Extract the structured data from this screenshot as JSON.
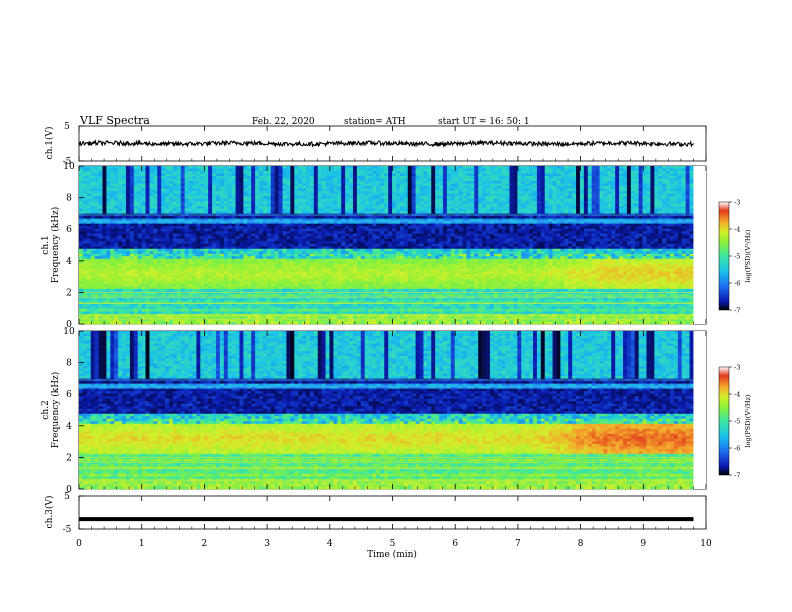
{
  "header": {
    "title": "VLF  Spectra",
    "date": "Feb. 22, 2020",
    "station": "station= ATH",
    "start": "start  UT  =    16: 50: 1"
  },
  "panels": {
    "ch1_wave": {
      "ylabel": "ch.1(V)"
    },
    "ch1_spec": {
      "ylabel_ch": "ch.1",
      "ylabel_freq": "Frequency  (kHz)"
    },
    "ch2_spec": {
      "ylabel_ch": "ch.2",
      "ylabel_freq": "Frequency  (kHz)"
    },
    "ch3_wave": {
      "ylabel": "ch.3(V)"
    }
  },
  "colorbar": {
    "label": "log(PSD)(V²/Hz)",
    "ticks": [
      "-3",
      "-4",
      "-5",
      "-6",
      "-7"
    ]
  },
  "colors": {
    "colormap": [
      "#000000",
      "#0a1bb0",
      "#1e6ef0",
      "#19c2e8",
      "#3ee6a0",
      "#86f03c",
      "#d2f02a",
      "#f3a62c",
      "#e23a1e",
      "#ffffff"
    ]
  },
  "chart_data": [
    {
      "type": "line",
      "name": "ch1-waveform",
      "xlabel": "Time  (min)",
      "xlim": [
        0,
        10
      ],
      "ylim": [
        -5,
        5
      ],
      "yticks": [
        "5",
        "-5"
      ],
      "baseline": 0,
      "note": "dense noisy trace near 0 V, amplitude about ±0.6 V, from 0 to 9.8 min"
    },
    {
      "type": "heatmap",
      "name": "ch1-spectrogram",
      "xlim": [
        0,
        9.8
      ],
      "ylim": [
        0,
        10
      ],
      "yticks": [
        "0",
        "2",
        "4",
        "6",
        "8",
        "10"
      ],
      "zlim": [
        -7,
        -3
      ],
      "bands": [
        {
          "f_range": [
            0,
            0.6
          ],
          "level": "green-yellow lines"
        },
        {
          "f_range": [
            0.6,
            2.2
          ],
          "level": "cyan-blue with horizontal lines"
        },
        {
          "f_range": [
            2.2,
            4.2
          ],
          "level": "green, yellow-orange after 7.5 min"
        },
        {
          "f_range": [
            4.2,
            7.0
          ],
          "level": "dark blue / black"
        },
        {
          "f_range": [
            7.0,
            10
          ],
          "level": "cyan with vertical black stripes (sferics)"
        }
      ]
    },
    {
      "type": "heatmap",
      "name": "ch2-spectrogram",
      "xlim": [
        0,
        9.8
      ],
      "ylim": [
        0,
        10
      ],
      "yticks": [
        "0",
        "2",
        "4",
        "6",
        "8",
        "10"
      ],
      "zlim": [
        -7,
        -3
      ],
      "bands": [
        {
          "f_range": [
            0,
            0.6
          ],
          "level": "green-yellow lines"
        },
        {
          "f_range": [
            0.6,
            2.3
          ],
          "level": "green-cyan with horizontal lines"
        },
        {
          "f_range": [
            2.3,
            4.3
          ],
          "level": "yellow-orange, red after 7.2 min"
        },
        {
          "f_range": [
            4.3,
            7.0
          ],
          "level": "dark blue / black"
        },
        {
          "f_range": [
            7.0,
            10
          ],
          "level": "cyan with vertical black stripes (sferics)"
        }
      ]
    },
    {
      "type": "line",
      "name": "ch3-waveform",
      "xlabel": "Time  (min)",
      "xlim": [
        0,
        10
      ],
      "ylim": [
        -5,
        5
      ],
      "yticks": [
        "5",
        "-5"
      ],
      "baseline": -2,
      "note": "flat thick trace at about -2 V from 0 to 9.8 min"
    }
  ],
  "xaxis": {
    "label": "Time  (min)",
    "ticks": [
      "0",
      "1",
      "2",
      "3",
      "4",
      "5",
      "6",
      "7",
      "8",
      "9",
      "10"
    ]
  }
}
